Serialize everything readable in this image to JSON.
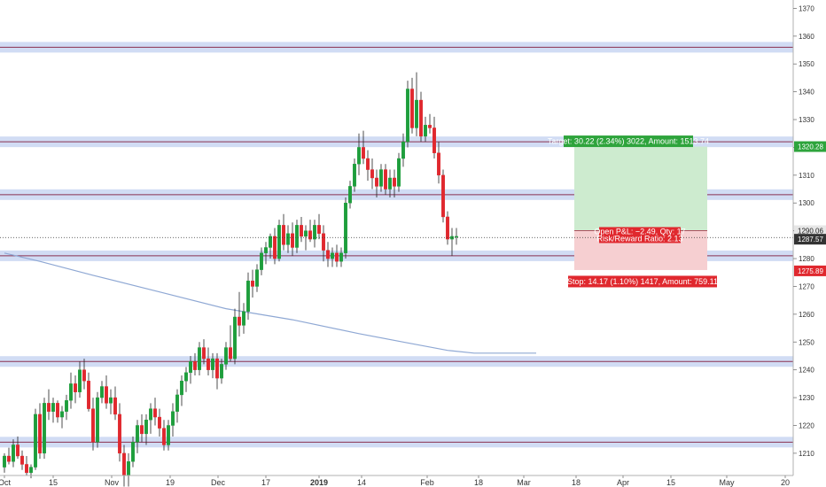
{
  "chart_data": {
    "type": "candlestick",
    "y_axis": {
      "range": [
        1202,
        1373
      ],
      "ticks": [
        1210,
        1220,
        1230,
        1240,
        1250,
        1260,
        1270,
        1280,
        1290,
        1300,
        1310,
        1320,
        1330,
        1340,
        1350,
        1360,
        1370
      ],
      "side": "right"
    },
    "x_axis": {
      "ticks": [
        {
          "label": "Oct",
          "bold": false
        },
        {
          "label": "15",
          "bold": false
        },
        {
          "label": "Nov",
          "bold": false
        },
        {
          "label": "19",
          "bold": false
        },
        {
          "label": "Dec",
          "bold": false
        },
        {
          "label": "17",
          "bold": false
        },
        {
          "label": "2019",
          "bold": true
        },
        {
          "label": "14",
          "bold": false
        },
        {
          "label": "Feb",
          "bold": false
        },
        {
          "label": "18",
          "bold": false
        },
        {
          "label": "Mar",
          "bold": false
        },
        {
          "label": "18",
          "bold": false
        },
        {
          "label": "Apr",
          "bold": false
        },
        {
          "label": "15",
          "bold": false
        },
        {
          "label": "May",
          "bold": false
        },
        {
          "label": "20",
          "bold": false
        }
      ]
    },
    "candles": [
      [
        1205,
        1210,
        1203,
        1209
      ],
      [
        1209,
        1212,
        1206,
        1207
      ],
      [
        1207,
        1215,
        1205,
        1213
      ],
      [
        1213,
        1216,
        1208,
        1209
      ],
      [
        1209,
        1211,
        1204,
        1206
      ],
      [
        1206,
        1209,
        1202,
        1203
      ],
      [
        1203,
        1206,
        1201,
        1205
      ],
      [
        1205,
        1226,
        1204,
        1224
      ],
      [
        1224,
        1228,
        1208,
        1210
      ],
      [
        1210,
        1230,
        1208,
        1228
      ],
      [
        1228,
        1233,
        1222,
        1225
      ],
      [
        1225,
        1230,
        1221,
        1228
      ],
      [
        1228,
        1229,
        1221,
        1223
      ],
      [
        1223,
        1227,
        1219,
        1225
      ],
      [
        1225,
        1231,
        1222,
        1229
      ],
      [
        1229,
        1239,
        1226,
        1235
      ],
      [
        1235,
        1238,
        1228,
        1232
      ],
      [
        1232,
        1243,
        1230,
        1240
      ],
      [
        1240,
        1244,
        1233,
        1236
      ],
      [
        1236,
        1239,
        1225,
        1226
      ],
      [
        1226,
        1230,
        1211,
        1214
      ],
      [
        1214,
        1232,
        1212,
        1230
      ],
      [
        1230,
        1236,
        1228,
        1234
      ],
      [
        1234,
        1238,
        1226,
        1228
      ],
      [
        1228,
        1233,
        1224,
        1230
      ],
      [
        1230,
        1234,
        1222,
        1224
      ],
      [
        1224,
        1228,
        1207,
        1210
      ],
      [
        1210,
        1213,
        1198,
        1202
      ],
      [
        1202,
        1210,
        1198,
        1207
      ],
      [
        1207,
        1216,
        1205,
        1214
      ],
      [
        1214,
        1222,
        1210,
        1220
      ],
      [
        1220,
        1224,
        1214,
        1217
      ],
      [
        1217,
        1224,
        1213,
        1222
      ],
      [
        1222,
        1228,
        1217,
        1226
      ],
      [
        1226,
        1230,
        1220,
        1223
      ],
      [
        1223,
        1226,
        1216,
        1219
      ],
      [
        1219,
        1222,
        1211,
        1213
      ],
      [
        1213,
        1222,
        1211,
        1220
      ],
      [
        1220,
        1228,
        1216,
        1225
      ],
      [
        1225,
        1233,
        1221,
        1231
      ],
      [
        1231,
        1238,
        1227,
        1236
      ],
      [
        1236,
        1241,
        1232,
        1239
      ],
      [
        1239,
        1245,
        1235,
        1243
      ],
      [
        1243,
        1246,
        1238,
        1240
      ],
      [
        1240,
        1250,
        1238,
        1248
      ],
      [
        1248,
        1251,
        1242,
        1244
      ],
      [
        1244,
        1248,
        1238,
        1240
      ],
      [
        1240,
        1246,
        1237,
        1244
      ],
      [
        1244,
        1246,
        1233,
        1237
      ],
      [
        1237,
        1244,
        1235,
        1242
      ],
      [
        1242,
        1250,
        1240,
        1248
      ],
      [
        1248,
        1256,
        1243,
        1244
      ],
      [
        1244,
        1262,
        1242,
        1259
      ],
      [
        1259,
        1268,
        1252,
        1256
      ],
      [
        1256,
        1264,
        1253,
        1261
      ],
      [
        1261,
        1275,
        1258,
        1272
      ],
      [
        1272,
        1276,
        1266,
        1270
      ],
      [
        1270,
        1278,
        1268,
        1276
      ],
      [
        1276,
        1284,
        1274,
        1282
      ],
      [
        1282,
        1286,
        1278,
        1284
      ],
      [
        1284,
        1289,
        1280,
        1288
      ],
      [
        1288,
        1291,
        1278,
        1280
      ],
      [
        1280,
        1294,
        1279,
        1292
      ],
      [
        1292,
        1296,
        1283,
        1285
      ],
      [
        1285,
        1292,
        1282,
        1289
      ],
      [
        1289,
        1293,
        1281,
        1284
      ],
      [
        1284,
        1294,
        1282,
        1292
      ],
      [
        1292,
        1295,
        1286,
        1288
      ],
      [
        1288,
        1292,
        1283,
        1290
      ],
      [
        1290,
        1294,
        1286,
        1287
      ],
      [
        1287,
        1294,
        1284,
        1292
      ],
      [
        1292,
        1296,
        1287,
        1289
      ],
      [
        1289,
        1292,
        1279,
        1283
      ],
      [
        1283,
        1286,
        1277,
        1280
      ],
      [
        1280,
        1284,
        1277,
        1282
      ],
      [
        1282,
        1285,
        1277,
        1279
      ],
      [
        1279,
        1284,
        1277,
        1282
      ],
      [
        1282,
        1302,
        1280,
        1300
      ],
      [
        1300,
        1308,
        1298,
        1306
      ],
      [
        1306,
        1316,
        1304,
        1314
      ],
      [
        1314,
        1325,
        1310,
        1320
      ],
      [
        1320,
        1326,
        1314,
        1316
      ],
      [
        1316,
        1319,
        1308,
        1312
      ],
      [
        1312,
        1316,
        1305,
        1309
      ],
      [
        1309,
        1312,
        1302,
        1306
      ],
      [
        1306,
        1314,
        1304,
        1312
      ],
      [
        1312,
        1314,
        1303,
        1305
      ],
      [
        1305,
        1312,
        1302,
        1309
      ],
      [
        1309,
        1312,
        1302,
        1306
      ],
      [
        1306,
        1318,
        1304,
        1316
      ],
      [
        1316,
        1325,
        1313,
        1322
      ],
      [
        1322,
        1344,
        1320,
        1341
      ],
      [
        1341,
        1345,
        1325,
        1327
      ],
      [
        1327,
        1347,
        1324,
        1337
      ],
      [
        1337,
        1340,
        1322,
        1324
      ],
      [
        1324,
        1331,
        1322,
        1328
      ],
      [
        1328,
        1332,
        1325,
        1327
      ],
      [
        1327,
        1331,
        1316,
        1318
      ],
      [
        1318,
        1322,
        1307,
        1310
      ],
      [
        1310,
        1312,
        1293,
        1295
      ],
      [
        1295,
        1297,
        1285,
        1287
      ],
      [
        1287,
        1291,
        1281,
        1288
      ],
      [
        1288,
        1291,
        1285,
        1288
      ]
    ],
    "ma_line": [
      [
        0,
        1282
      ],
      [
        8,
        1279
      ],
      [
        20,
        1274
      ],
      [
        35,
        1268
      ],
      [
        50,
        1262
      ],
      [
        65,
        1258
      ],
      [
        80,
        1253
      ],
      [
        90,
        1250
      ],
      [
        100,
        1247
      ],
      [
        106,
        1246
      ],
      [
        114,
        1246
      ],
      [
        120,
        1246
      ]
    ],
    "horizontal_bands": [
      1356,
      1322,
      1303,
      1281,
      1243,
      1214
    ],
    "position": {
      "entry": 1290.06,
      "target_price": 1320.28,
      "stop_price": 1275.89,
      "target_label": "Target: 30.22 (2.34%) 3022, Amount: 1513.74",
      "stop_label": "Stop: 14.17 (1.10%) 1417, Amount: 759.11",
      "open_pl_label": "Open P&L: −2.49, Qty: 17",
      "rr_label": "Risk/Reward Ratio: 2.13"
    },
    "price_tags": {
      "target": "1320.28",
      "entry": "1290.06",
      "last": "1287.57",
      "stop": "1275.89"
    },
    "colors": {
      "up": "#1e9e3c",
      "down": "#e0282e",
      "band_fill": "#c9d6f2",
      "band_line": "#8a3050",
      "ma": "#8fa8d4",
      "profit_zone": "#cdebcf",
      "loss_zone": "#f6cfd1",
      "target_box": "#2ea43c",
      "stop_box": "#e0282e"
    }
  }
}
